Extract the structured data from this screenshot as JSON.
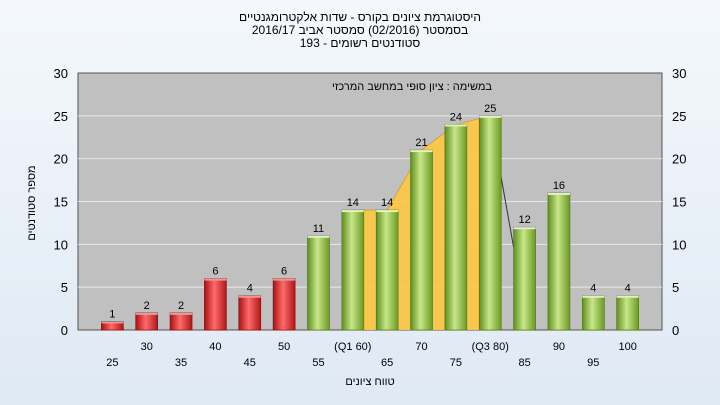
{
  "title": {
    "line1": "היסטוגרמת ציונים בקורס - שדות אלקטרומגנטיים",
    "line2": "בסמסטר  (02/2016)  סמסטר אביב 2016/17",
    "line3": "193 - סטודנטים רשומים"
  },
  "chart_data": {
    "type": "bar",
    "annotation": "במשימה : ציון סופי במחשב המרכזי",
    "xlabel": "טווח ציונים",
    "ylabel": "מספר סטודנטים",
    "ylim": [
      0,
      30
    ],
    "yticks": [
      0,
      5,
      10,
      15,
      20,
      25,
      30
    ],
    "grid": true,
    "categories": [
      "25",
      "30",
      "35",
      "40",
      "45",
      "50",
      "55",
      "(Q1 60)",
      "65",
      "70",
      "75",
      "(Q3 80)",
      "85",
      "90",
      "95",
      "100"
    ],
    "values": [
      1,
      2,
      2,
      6,
      4,
      6,
      11,
      14,
      14,
      21,
      24,
      25,
      12,
      16,
      4,
      4
    ],
    "value_labels": [
      "1",
      "2",
      "2",
      "6",
      "4",
      "6",
      "11",
      "14",
      "14",
      "21",
      "24",
      "25",
      "12",
      "16",
      "4",
      "4"
    ],
    "colors": {
      "failing": "#d83030",
      "passing": "#8cbf3a",
      "interquartile_band": "#ffc840",
      "plot_background": "#c0c0c0"
    }
  }
}
